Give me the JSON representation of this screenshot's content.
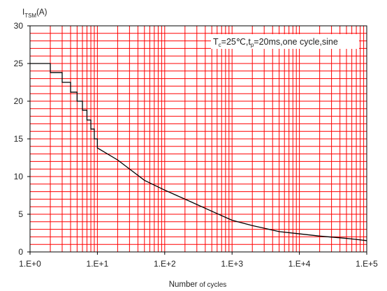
{
  "chart_data": {
    "type": "line",
    "x_scale": "log",
    "xlim": [
      1,
      100000
    ],
    "ylim": [
      0,
      30
    ],
    "x_ticks": [
      {
        "value": 1,
        "label": "1.E+0"
      },
      {
        "value": 10,
        "label": "1.E+1"
      },
      {
        "value": 100,
        "label": "1.E+2"
      },
      {
        "value": 1000,
        "label": "1.E+3"
      },
      {
        "value": 10000,
        "label": "1.E+4"
      },
      {
        "value": 100000,
        "label": "1.E+5"
      }
    ],
    "y_ticks": [
      0,
      5,
      10,
      15,
      20,
      25,
      30
    ],
    "ylabel": {
      "main": "I",
      "sub": "TSM",
      "suffix": "(A)"
    },
    "xlabel": {
      "main": "Number",
      "suffix": " of cycles"
    },
    "annotation": {
      "t1": "T",
      "t1_sub": "c",
      "t2": "=25℃,t",
      "t2_sub": "p",
      "t3": "=20ms,one cycle,sine"
    },
    "grid": true,
    "colors": {
      "grid": "#ff0000",
      "line": "#000000",
      "frame": "#000000",
      "background": "#ffffff"
    },
    "series": [
      {
        "points": [
          [
            1,
            25
          ],
          [
            2,
            25
          ],
          [
            2,
            23.8
          ],
          [
            3,
            23.8
          ],
          [
            3,
            22.5
          ],
          [
            4,
            22.5
          ],
          [
            4,
            21.2
          ],
          [
            5,
            21.2
          ],
          [
            5,
            20
          ],
          [
            6,
            20
          ],
          [
            6,
            18.8
          ],
          [
            7,
            18.8
          ],
          [
            7,
            17.5
          ],
          [
            8,
            17.5
          ],
          [
            8,
            16.3
          ],
          [
            9,
            16.3
          ],
          [
            9,
            15
          ],
          [
            10,
            15
          ],
          [
            10,
            13.8
          ],
          [
            20,
            12.2
          ],
          [
            50,
            9.5
          ],
          [
            100,
            8.2
          ],
          [
            200,
            7.0
          ],
          [
            500,
            5.4
          ],
          [
            1000,
            4.2
          ],
          [
            2000,
            3.5
          ],
          [
            5000,
            2.7
          ],
          [
            10000,
            2.4
          ],
          [
            20000,
            2.1
          ],
          [
            50000,
            1.8
          ],
          [
            100000,
            1.5
          ]
        ]
      }
    ]
  }
}
